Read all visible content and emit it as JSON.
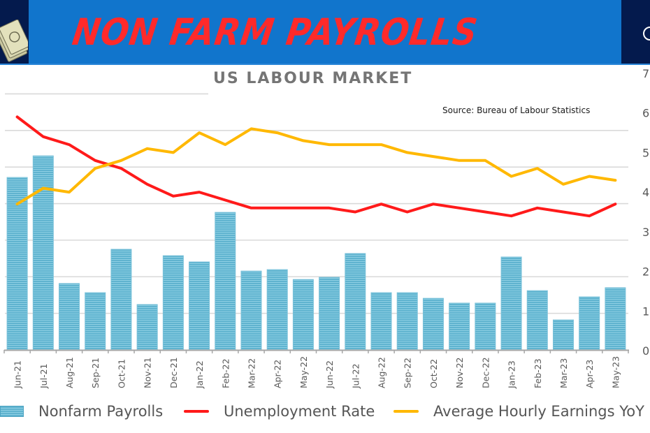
{
  "banner": {
    "title": "NON FARM PAYROLLS",
    "colors": {
      "main": "#1175cc",
      "side": "#041a4d",
      "title": "#ff2a2a"
    },
    "left_icon": "money-stack-icon",
    "right_icon": "circle-icon"
  },
  "chart": {
    "title": "US LABOUR MARKET",
    "source": "Source: Bureau of Labour Statistics"
  },
  "legend": {
    "items": [
      {
        "label": "Nonfarm Payrolls",
        "type": "bar",
        "color": "#5fb3cf"
      },
      {
        "label": "Unemployment Rate",
        "type": "line",
        "color": "#ff1a1a"
      },
      {
        "label": "Average Hourly Earnings YoY",
        "type": "line",
        "color": "#ffb800"
      }
    ]
  },
  "chart_data": {
    "type": "bar",
    "title": "US LABOUR MARKET",
    "subtitle": "Source: Bureau of Labour Statistics",
    "xlabel": "",
    "ylabel": "",
    "categories": [
      "Jun-21",
      "Jul-21",
      "Aug-21",
      "Sep-21",
      "Oct-21",
      "Nov-21",
      "Dec-21",
      "Jan-22",
      "Feb-22",
      "Mar-22",
      "Apr-22",
      "May-22",
      "Jun-22",
      "Jul-22",
      "Aug-22",
      "Sep-22",
      "Oct-22",
      "Nov-22",
      "Dec-22",
      "Jan-23",
      "Feb-23",
      "Mar-23",
      "Apr-23",
      "May-23"
    ],
    "series": [
      {
        "name": "Nonfarm Payrolls",
        "type": "bar",
        "axis": "left",
        "unit": "thousands",
        "color": "#5fb3cf",
        "values": [
          943,
          1061,
          363,
          313,
          550,
          248,
          515,
          481,
          752,
          431,
          439,
          385,
          397,
          527,
          313,
          313,
          282,
          256,
          256,
          508,
          324,
          164,
          290,
          340
        ]
      },
      {
        "name": "Unemployment Rate",
        "type": "line",
        "axis": "right",
        "unit": "%",
        "color": "#ff1a1a",
        "values": [
          5.9,
          5.4,
          5.2,
          4.8,
          4.6,
          4.2,
          3.9,
          4.0,
          3.8,
          3.6,
          3.6,
          3.6,
          3.6,
          3.5,
          3.7,
          3.5,
          3.7,
          3.6,
          3.5,
          3.4,
          3.6,
          3.5,
          3.4,
          3.7
        ]
      },
      {
        "name": "Average Hourly Earnings YoY",
        "type": "line",
        "axis": "right",
        "unit": "%",
        "color": "#ffb800",
        "values": [
          3.7,
          4.1,
          4.0,
          4.6,
          4.8,
          5.1,
          5.0,
          5.5,
          5.2,
          5.6,
          5.5,
          5.3,
          5.2,
          5.2,
          5.2,
          5.0,
          4.9,
          4.8,
          4.8,
          4.4,
          4.6,
          4.2,
          4.4,
          4.3
        ]
      }
    ],
    "left_axis": {
      "ylim": [
        0,
        1400
      ],
      "step": 200,
      "tick_labels_visible": false
    },
    "right_axis": {
      "ylim": [
        0,
        7
      ],
      "ticks": [
        "0",
        "1",
        "2",
        "3",
        "4",
        "5",
        "6",
        "7"
      ]
    },
    "grid": true,
    "legend_position": "bottom"
  }
}
